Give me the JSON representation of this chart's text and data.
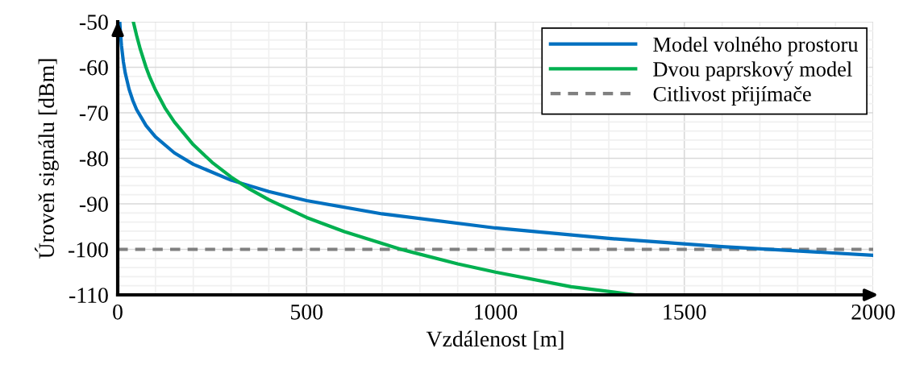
{
  "chart_data": {
    "type": "line",
    "xlabel": "Vzdálenost [m]",
    "ylabel": "Úroveň signálu [dBm]",
    "xlim": [
      0,
      2000
    ],
    "xticks": [
      0,
      500,
      1000,
      1500,
      2000
    ],
    "ylim": [
      -110,
      -50
    ],
    "yticks": [
      -110,
      -100,
      -90,
      -80,
      -70,
      -60,
      -50
    ],
    "grid": true,
    "legend": "top right",
    "marker": "none",
    "series": [
      {
        "name": "Model volného prostoru",
        "color": "#0070c0",
        "x": [
          5.4,
          7,
          10,
          15,
          20,
          30,
          40,
          50,
          75,
          100,
          150,
          200,
          300,
          400,
          500,
          700,
          1000,
          1300,
          1600,
          2000
        ],
        "values": [
          -50.0,
          -52.2,
          -55.3,
          -58.8,
          -61.3,
          -64.8,
          -67.3,
          -69.3,
          -72.8,
          -75.3,
          -78.8,
          -81.3,
          -84.8,
          -87.3,
          -89.3,
          -92.2,
          -95.3,
          -97.6,
          -99.4,
          -101.3
        ]
      },
      {
        "name": "Dvou paprskový model",
        "color": "#00b050",
        "x": [
          41.3,
          50,
          60,
          75,
          85,
          100,
          125,
          150,
          200,
          250,
          300,
          350,
          400,
          500,
          600,
          750,
          900,
          1000,
          1200,
          1370
        ],
        "values": [
          -50.0,
          -53.0,
          -56.1,
          -60.0,
          -62.2,
          -65.0,
          -68.9,
          -72.0,
          -77.0,
          -80.9,
          -84.1,
          -86.8,
          -89.1,
          -93.0,
          -96.1,
          -100.0,
          -103.2,
          -105.0,
          -108.2,
          -110.0
        ]
      }
    ],
    "ref_lines": [
      {
        "axis": "y",
        "value": -100,
        "label": "Citlivost přijímače",
        "color": "#808080",
        "line_style": "dashed"
      }
    ]
  }
}
